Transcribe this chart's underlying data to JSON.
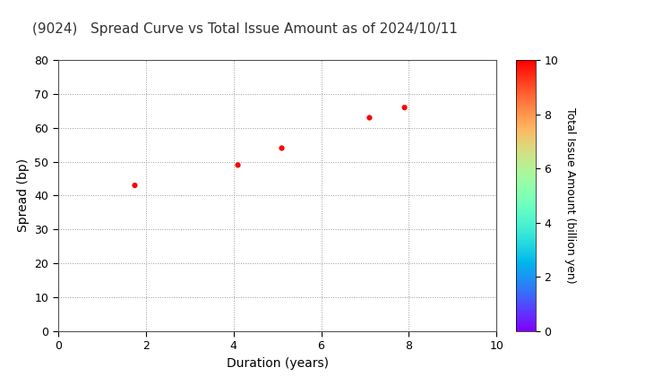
{
  "title": "(9024)   Spread Curve vs Total Issue Amount as of 2024/10/11",
  "xlabel": "Duration (years)",
  "ylabel": "Spread (bp)",
  "colorbar_label": "Total Issue Amount (billion yen)",
  "points": [
    {
      "duration": 1.75,
      "spread": 43,
      "amount": 10
    },
    {
      "duration": 4.1,
      "spread": 49,
      "amount": 10
    },
    {
      "duration": 5.1,
      "spread": 54,
      "amount": 10
    },
    {
      "duration": 7.1,
      "spread": 63,
      "amount": 10
    },
    {
      "duration": 7.9,
      "spread": 66,
      "amount": 10
    }
  ],
  "xlim": [
    0,
    10
  ],
  "ylim": [
    0,
    80
  ],
  "xticks": [
    0,
    2,
    4,
    6,
    8,
    10
  ],
  "yticks": [
    0,
    10,
    20,
    30,
    40,
    50,
    60,
    70,
    80
  ],
  "colorbar_min": 0,
  "colorbar_max": 10,
  "colorbar_ticks": [
    0,
    2,
    4,
    6,
    8,
    10
  ],
  "marker_size": 20,
  "background_color": "#ffffff",
  "grid_color": "#999999",
  "title_fontsize": 11,
  "axis_label_fontsize": 10
}
